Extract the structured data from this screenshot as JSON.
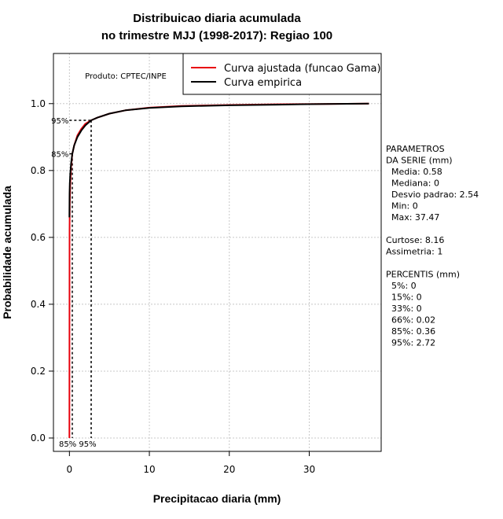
{
  "chart_data": {
    "type": "line",
    "title": [
      "Distribuicao diaria acumulada",
      "no trimestre MJJ (1998-2017): Regiao 100"
    ],
    "xlabel": "Precipitacao diaria (mm)",
    "ylabel": "Probabilidade acumulada",
    "xlim": [
      -2,
      39
    ],
    "ylim": [
      -0.04,
      1.15
    ],
    "x_ticks": [
      "0",
      "10",
      "20",
      "30"
    ],
    "y_ticks": [
      "0.0",
      "0.2",
      "0.4",
      "0.6",
      "0.8",
      "1.0"
    ],
    "grid": true,
    "product_label": "Produto: CPTEC/INPE",
    "legend": {
      "placement": "top-right",
      "entries": [
        {
          "name": "Curva ajustada (funcao Gama)",
          "color": "#e8000b"
        },
        {
          "name": "Curva empirica",
          "color": "#000000"
        }
      ]
    },
    "series": [
      {
        "name": "Curva ajustada (funcao Gama)",
        "color": "#e8000b",
        "x": [
          0.0,
          0.02,
          0.05,
          0.1,
          0.2,
          0.36,
          0.6,
          1.0,
          1.5,
          2.0,
          2.72,
          3.5,
          5,
          7,
          10,
          14,
          20,
          26,
          32,
          37.47
        ],
        "y": [
          0.0,
          0.62,
          0.7,
          0.76,
          0.81,
          0.85,
          0.875,
          0.905,
          0.925,
          0.94,
          0.95,
          0.958,
          0.97,
          0.98,
          0.988,
          0.993,
          0.996,
          0.998,
          0.999,
          1.0
        ]
      },
      {
        "name": "Curva empirica",
        "color": "#000000",
        "x": [
          0.0,
          0.02,
          0.05,
          0.1,
          0.2,
          0.36,
          0.6,
          1.0,
          1.5,
          2.0,
          2.72,
          3.5,
          5,
          7,
          10,
          14,
          20,
          26,
          32,
          37.47
        ],
        "y": [
          0.66,
          0.73,
          0.76,
          0.79,
          0.82,
          0.85,
          0.875,
          0.9,
          0.92,
          0.935,
          0.95,
          0.958,
          0.97,
          0.98,
          0.987,
          0.992,
          0.995,
          0.997,
          0.999,
          1.0
        ]
      }
    ],
    "percentile_markers": [
      {
        "label": "85%",
        "x": 0.36,
        "y": 0.85
      },
      {
        "label": "95%",
        "x": 2.72,
        "y": 0.95
      }
    ],
    "bottom_labels": "85% 95%"
  },
  "side_panel": {
    "lines": [
      "PARAMETROS",
      "DA SERIE (mm)",
      "  Media: 0.58",
      "  Mediana: 0",
      "  Desvio padrao: 2.54",
      "  Min: 0",
      "  Max: 37.47",
      "",
      "Curtose: 8.16",
      "Assimetria: 1",
      "",
      "PERCENTIS (mm)",
      "  5%: 0",
      "  15%: 0",
      "  33%: 0",
      "  66%: 0.02",
      "  85%: 0.36",
      "  95%: 2.72"
    ]
  }
}
